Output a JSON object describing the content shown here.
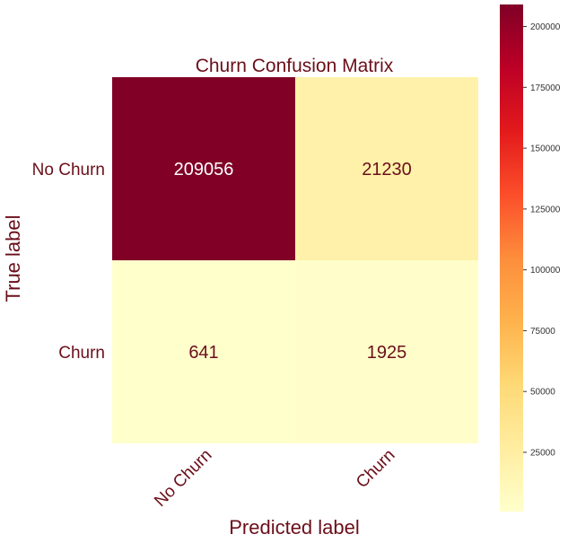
{
  "chart_data": {
    "type": "heatmap",
    "title": "Churn Confusion Matrix",
    "xlabel": "Predicted label",
    "ylabel": "True label",
    "x_categories": [
      "No Churn",
      "Churn"
    ],
    "y_categories": [
      "No Churn",
      "Churn"
    ],
    "values": [
      [
        209056,
        21230
      ],
      [
        641,
        1925
      ]
    ],
    "colormap": "YlOrRd",
    "colorbar": {
      "range": [
        641,
        209056
      ],
      "ticks": [
        25000,
        50000,
        75000,
        100000,
        125000,
        150000,
        175000,
        200000
      ]
    },
    "text_color": "#6b0f1a",
    "grid": false
  }
}
